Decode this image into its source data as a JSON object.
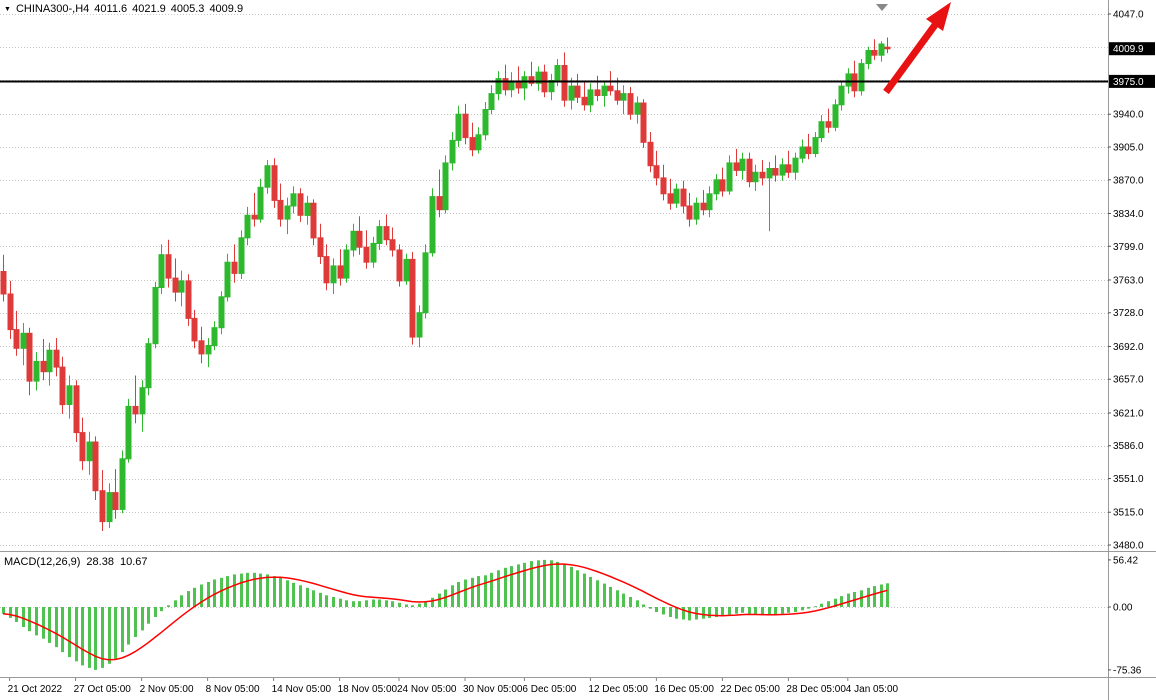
{
  "header": {
    "symbol_period": "CHINA300-,H4",
    "open": "4011.6",
    "high": "4021.9",
    "low": "4005.3",
    "close": "4009.9"
  },
  "macd_label": {
    "name": "MACD(12,26,9)",
    "main_value": "28.38",
    "signal_value": "10.67"
  },
  "chart_data": {
    "type": "candlestick",
    "title": "CHINA300-,H4",
    "price_ylim": [
      3480.0,
      4047.0
    ],
    "price_axis_labels": [
      "4047.0",
      "3940.0",
      "3905.0",
      "3870.0",
      "3834.0",
      "3799.0",
      "3763.0",
      "3728.0",
      "3692.0",
      "3657.0",
      "3621.0",
      "3586.0",
      "3551.0",
      "3515.0",
      "3480.0"
    ],
    "grid_levels": [
      4047.0,
      4011.6,
      3976.2,
      3940.0,
      3905.0,
      3870.0,
      3834.0,
      3799.0,
      3763.0,
      3728.0,
      3692.0,
      3657.0,
      3621.0,
      3586.0,
      3551.0,
      3515.0,
      3480.0
    ],
    "current_price_label": "4009.9",
    "current_price": 4009.9,
    "hline_label": "3975.0",
    "hline_level": 3975.0,
    "time_labels": [
      {
        "label": "21 Oct 2022",
        "index": 1
      },
      {
        "label": "27 Oct 05:00",
        "index": 11
      },
      {
        "label": "2 Nov 05:00",
        "index": 21
      },
      {
        "label": "8 Nov 05:00",
        "index": 31
      },
      {
        "label": "14 Nov 05:00",
        "index": 41
      },
      {
        "label": "18 Nov 05:00",
        "index": 51
      },
      {
        "label": "24 Nov 05:00",
        "index": 60
      },
      {
        "label": "30 Nov 05:00",
        "index": 70
      },
      {
        "label": "6 Dec 05:00",
        "index": 79
      },
      {
        "label": "12 Dec 05:00",
        "index": 89
      },
      {
        "label": "16 Dec 05:00",
        "index": 99
      },
      {
        "label": "22 Dec 05:00",
        "index": 109
      },
      {
        "label": "28 Dec 05:00",
        "index": 119
      },
      {
        "label": "4 Jan 05:00",
        "index": 128
      }
    ],
    "candles_ohlc": [
      [
        3772,
        3790,
        3740,
        3748
      ],
      [
        3748,
        3762,
        3700,
        3710
      ],
      [
        3710,
        3730,
        3682,
        3690
      ],
      [
        3690,
        3717,
        3672,
        3706
      ],
      [
        3706,
        3712,
        3640,
        3655
      ],
      [
        3655,
        3686,
        3645,
        3676
      ],
      [
        3676,
        3700,
        3656,
        3665
      ],
      [
        3665,
        3696,
        3650,
        3688
      ],
      [
        3688,
        3701,
        3660,
        3670
      ],
      [
        3670,
        3681,
        3620,
        3630
      ],
      [
        3630,
        3661,
        3615,
        3650
      ],
      [
        3650,
        3656,
        3590,
        3600
      ],
      [
        3600,
        3616,
        3560,
        3570
      ],
      [
        3570,
        3601,
        3555,
        3590
      ],
      [
        3590,
        3596,
        3528,
        3538
      ],
      [
        3538,
        3560,
        3495,
        3505
      ],
      [
        3505,
        3546,
        3498,
        3536
      ],
      [
        3536,
        3561,
        3508,
        3518
      ],
      [
        3518,
        3581,
        3514,
        3572
      ],
      [
        3572,
        3636,
        3568,
        3628
      ],
      [
        3628,
        3661,
        3610,
        3620
      ],
      [
        3620,
        3656,
        3601,
        3648
      ],
      [
        3648,
        3701,
        3640,
        3695
      ],
      [
        3695,
        3761,
        3690,
        3755
      ],
      [
        3755,
        3801,
        3748,
        3790
      ],
      [
        3790,
        3806,
        3755,
        3765
      ],
      [
        3765,
        3786,
        3740,
        3750
      ],
      [
        3750,
        3773,
        3735,
        3762
      ],
      [
        3762,
        3769,
        3714,
        3722
      ],
      [
        3722,
        3731,
        3690,
        3698
      ],
      [
        3698,
        3713,
        3674,
        3684
      ],
      [
        3684,
        3701,
        3670,
        3693
      ],
      [
        3693,
        3719,
        3688,
        3712
      ],
      [
        3712,
        3751,
        3705,
        3745
      ],
      [
        3745,
        3791,
        3740,
        3782
      ],
      [
        3782,
        3801,
        3760,
        3770
      ],
      [
        3770,
        3816,
        3764,
        3808
      ],
      [
        3808,
        3841,
        3800,
        3832
      ],
      [
        3832,
        3856,
        3820,
        3828
      ],
      [
        3828,
        3871,
        3824,
        3862
      ],
      [
        3862,
        3891,
        3855,
        3885
      ],
      [
        3885,
        3893,
        3840,
        3848
      ],
      [
        3848,
        3866,
        3820,
        3828
      ],
      [
        3828,
        3851,
        3812,
        3842
      ],
      [
        3842,
        3863,
        3834,
        3855
      ],
      [
        3855,
        3861,
        3825,
        3832
      ],
      [
        3832,
        3853,
        3822,
        3845
      ],
      [
        3845,
        3849,
        3800,
        3808
      ],
      [
        3808,
        3823,
        3780,
        3788
      ],
      [
        3788,
        3801,
        3752,
        3760
      ],
      [
        3760,
        3786,
        3748,
        3778
      ],
      [
        3778,
        3796,
        3757,
        3765
      ],
      [
        3765,
        3801,
        3760,
        3795
      ],
      [
        3795,
        3823,
        3788,
        3815
      ],
      [
        3815,
        3831,
        3790,
        3798
      ],
      [
        3798,
        3816,
        3775,
        3782
      ],
      [
        3782,
        3809,
        3776,
        3802
      ],
      [
        3802,
        3827,
        3795,
        3820
      ],
      [
        3820,
        3833,
        3800,
        3806
      ],
      [
        3806,
        3819,
        3788,
        3795
      ],
      [
        3795,
        3801,
        3756,
        3762
      ],
      [
        3762,
        3791,
        3758,
        3785
      ],
      [
        3785,
        3793,
        3694,
        3702
      ],
      [
        3702,
        3736,
        3691,
        3728
      ],
      [
        3728,
        3801,
        3722,
        3792
      ],
      [
        3792,
        3861,
        3788,
        3852
      ],
      [
        3852,
        3881,
        3830,
        3838
      ],
      [
        3838,
        3896,
        3834,
        3888
      ],
      [
        3888,
        3921,
        3880,
        3912
      ],
      [
        3912,
        3949,
        3905,
        3940
      ],
      [
        3940,
        3951,
        3908,
        3915
      ],
      [
        3915,
        3931,
        3895,
        3902
      ],
      [
        3902,
        3926,
        3898,
        3918
      ],
      [
        3918,
        3953,
        3912,
        3945
      ],
      [
        3945,
        3971,
        3940,
        3962
      ],
      [
        3962,
        3986,
        3955,
        3978
      ],
      [
        3978,
        3993,
        3960,
        3966
      ],
      [
        3966,
        3985,
        3958,
        3975
      ],
      [
        3975,
        3991,
        3962,
        3968
      ],
      [
        3968,
        3986,
        3955,
        3980
      ],
      [
        3980,
        3996,
        3970,
        3973
      ],
      [
        3973,
        3991,
        3965,
        3985
      ],
      [
        3985,
        3993,
        3958,
        3964
      ],
      [
        3964,
        3983,
        3955,
        3976
      ],
      [
        3976,
        3999,
        3970,
        3992
      ],
      [
        3992,
        4006,
        3948,
        3955
      ],
      [
        3955,
        3979,
        3945,
        3970
      ],
      [
        3970,
        3983,
        3952,
        3958
      ],
      [
        3958,
        3976,
        3944,
        3950
      ],
      [
        3950,
        3973,
        3942,
        3966
      ],
      [
        3966,
        3981,
        3954,
        3960
      ],
      [
        3960,
        3976,
        3948,
        3970
      ],
      [
        3970,
        3986,
        3960,
        3965
      ],
      [
        3965,
        3979,
        3950,
        3955
      ],
      [
        3955,
        3971,
        3940,
        3962
      ],
      [
        3962,
        3969,
        3934,
        3940
      ],
      [
        3940,
        3959,
        3930,
        3952
      ],
      [
        3952,
        3956,
        3904,
        3910
      ],
      [
        3910,
        3921,
        3878,
        3885
      ],
      [
        3885,
        3901,
        3864,
        3872
      ],
      [
        3872,
        3886,
        3848,
        3855
      ],
      [
        3855,
        3871,
        3838,
        3845
      ],
      [
        3845,
        3866,
        3840,
        3860
      ],
      [
        3860,
        3869,
        3834,
        3842
      ],
      [
        3842,
        3856,
        3820,
        3828
      ],
      [
        3828,
        3851,
        3822,
        3845
      ],
      [
        3845,
        3859,
        3832,
        3838
      ],
      [
        3838,
        3863,
        3830,
        3855
      ],
      [
        3855,
        3876,
        3848,
        3870
      ],
      [
        3870,
        3883,
        3852,
        3858
      ],
      [
        3858,
        3896,
        3854,
        3888
      ],
      [
        3888,
        3903,
        3874,
        3880
      ],
      [
        3880,
        3899,
        3870,
        3892
      ],
      [
        3892,
        3899,
        3862,
        3868
      ],
      [
        3868,
        3886,
        3858,
        3878
      ],
      [
        3878,
        3891,
        3864,
        3872
      ],
      [
        3872,
        3889,
        3815,
        3882
      ],
      [
        3882,
        3896,
        3868,
        3875
      ],
      [
        3875,
        3893,
        3869,
        3886
      ],
      [
        3886,
        3901,
        3872,
        3878
      ],
      [
        3878,
        3899,
        3870,
        3893
      ],
      [
        3893,
        3913,
        3888,
        3905
      ],
      [
        3905,
        3919,
        3892,
        3898
      ],
      [
        3898,
        3921,
        3894,
        3915
      ],
      [
        3915,
        3939,
        3910,
        3932
      ],
      [
        3932,
        3946,
        3920,
        3926
      ],
      [
        3926,
        3956,
        3922,
        3950
      ],
      [
        3950,
        3976,
        3944,
        3970
      ],
      [
        3970,
        3989,
        3962,
        3983
      ],
      [
        3983,
        3997,
        3958,
        3965
      ],
      [
        3965,
        3999,
        3960,
        3994
      ],
      [
        3994,
        4012,
        3988,
        4008
      ],
      [
        4008,
        4020,
        3998,
        4003
      ],
      [
        4003,
        4018,
        3996,
        4015
      ],
      [
        4011.6,
        4021.9,
        4005.3,
        4009.9
      ]
    ],
    "macd": {
      "name": "MACD(12,26,9)",
      "ylim": [
        -75.36,
        56.42
      ],
      "axis_labels": [
        "56.42",
        "0.00",
        "-75.36"
      ],
      "last_main": 28.38,
      "last_signal": 10.67,
      "signal_ema_period": 9,
      "histogram": [
        -8,
        -13,
        -18,
        -24,
        -29,
        -34,
        -38,
        -43,
        -48,
        -54,
        -60,
        -65,
        -70,
        -73,
        -75.36,
        -73,
        -68,
        -62,
        -54,
        -45,
        -36,
        -28,
        -20,
        -12,
        -5,
        2,
        8,
        14,
        19,
        23,
        27,
        30,
        33,
        35,
        37,
        39,
        40,
        41,
        41,
        40,
        39,
        37,
        35,
        32,
        29,
        26,
        23,
        20,
        17,
        14,
        12,
        10,
        8,
        7,
        7,
        8,
        9,
        9,
        8,
        7,
        5,
        3,
        2,
        4,
        7,
        11,
        16,
        21,
        26,
        30,
        33,
        35,
        37,
        38,
        41,
        44,
        47,
        49,
        51,
        53,
        55,
        56,
        56.42,
        56,
        54,
        51,
        48,
        44,
        40,
        36,
        32,
        28,
        24,
        20,
        16,
        12,
        8,
        3,
        -2,
        -6,
        -9,
        -12,
        -14,
        -15,
        -16,
        -15,
        -14,
        -13,
        -12,
        -11,
        -9,
        -8,
        -7,
        -8,
        -9,
        -10,
        -10,
        -9,
        -8,
        -7,
        -6,
        -4,
        -2,
        1,
        4,
        7,
        10,
        13,
        16,
        18,
        20,
        23,
        25,
        27,
        28.38
      ]
    },
    "colors": {
      "up": "#2eb82e",
      "down": "#df3a3a",
      "macd_histogram": "#4fc24f",
      "macd_signal": "#ff0000",
      "grid": "#c6c6c6",
      "hline": "#000000",
      "arrow": "#e81212",
      "axis_text": "#000000",
      "price_box_bg": "#000000",
      "price_box_text": "#ffffff",
      "background": "#ffffff"
    }
  }
}
